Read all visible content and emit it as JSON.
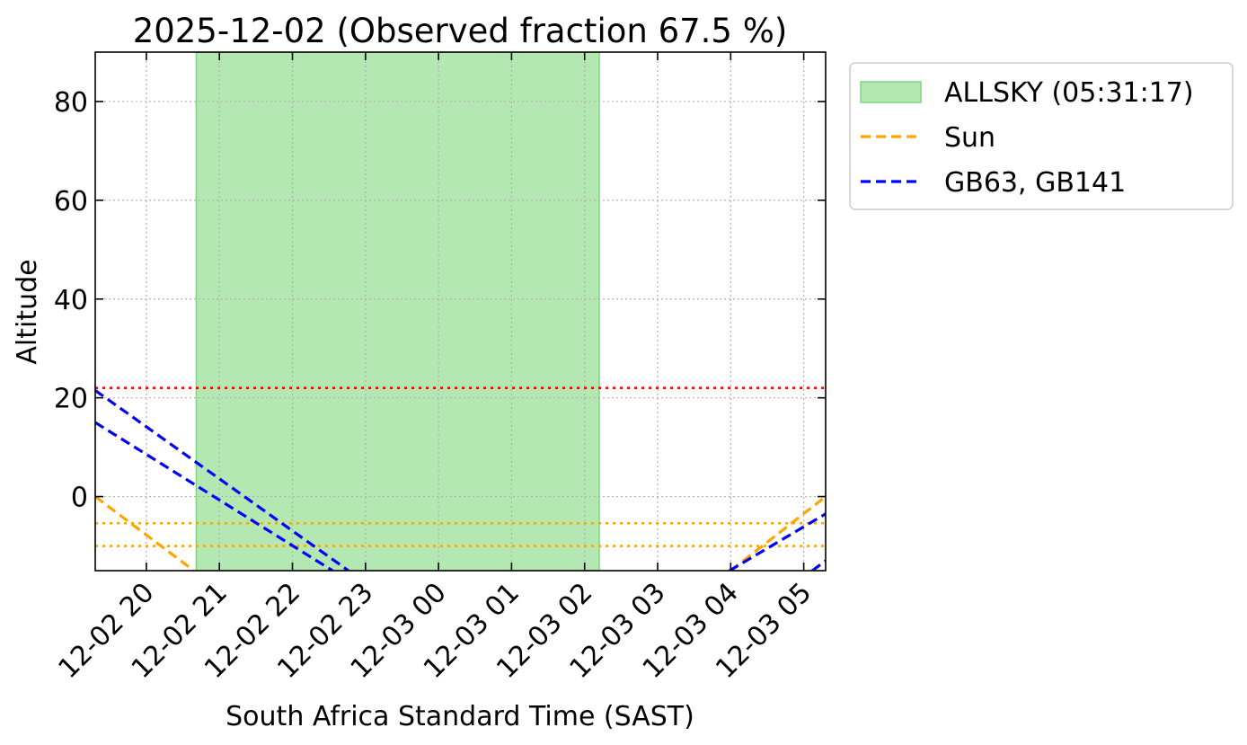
{
  "chart_data": {
    "type": "line",
    "title": "2025-12-02 (Observed fraction 67.5 %)",
    "xlabel": "South Africa Standard Time (SAST)",
    "ylabel": "Altitude",
    "x_axis_type": "datetime",
    "xlim": [
      "2025-12-02 19:18",
      "2025-12-03 05:18"
    ],
    "ylim": [
      -15,
      90
    ],
    "x_ticks": [
      {
        "t": "2025-12-02 20:00",
        "label": "12-02 20"
      },
      {
        "t": "2025-12-02 21:00",
        "label": "12-02 21"
      },
      {
        "t": "2025-12-02 22:00",
        "label": "12-02 22"
      },
      {
        "t": "2025-12-02 23:00",
        "label": "12-02 23"
      },
      {
        "t": "2025-12-03 00:00",
        "label": "12-03 00"
      },
      {
        "t": "2025-12-03 01:00",
        "label": "12-03 01"
      },
      {
        "t": "2025-12-03 02:00",
        "label": "12-03 02"
      },
      {
        "t": "2025-12-03 03:00",
        "label": "12-03 03"
      },
      {
        "t": "2025-12-03 04:00",
        "label": "12-03 04"
      },
      {
        "t": "2025-12-03 05:00",
        "label": "12-03 05"
      }
    ],
    "y_ticks": [
      {
        "v": 0,
        "label": "0"
      },
      {
        "v": 20,
        "label": "20"
      },
      {
        "v": 40,
        "label": "40"
      },
      {
        "v": 60,
        "label": "60"
      },
      {
        "v": 80,
        "label": "80"
      }
    ],
    "grid": true,
    "legend_position": "outside-top-right",
    "shaded_spans": [
      {
        "name": "ALLSKY (05:31:17)",
        "start": "2025-12-02 20:41",
        "end": "2025-12-03 02:12",
        "color": "#b3e8b3",
        "edge": "#7fd37f"
      }
    ],
    "horizontal_lines": [
      {
        "y": 22,
        "color": "#ff0000",
        "style": "dotted"
      },
      {
        "y": -5.4,
        "color": "#ffa500",
        "style": "dotted"
      },
      {
        "y": -10,
        "color": "#ffa500",
        "style": "dotted"
      }
    ],
    "series": [
      {
        "name": "Sun",
        "color": "#ffa500",
        "style": "dashed",
        "legend": true,
        "points": [
          [
            "2025-12-02 19:18",
            0
          ],
          [
            "2025-12-02 20:39",
            -15
          ]
        ]
      },
      {
        "name": "Sun",
        "color": "#ffa500",
        "style": "dashed",
        "legend": false,
        "points": [
          [
            "2025-12-03 04:00",
            -15
          ],
          [
            "2025-12-03 05:18",
            0
          ]
        ]
      },
      {
        "name": "GB63, GB141",
        "color": "#0000ff",
        "style": "dashed",
        "legend": true,
        "points": [
          [
            "2025-12-02 19:18",
            21.5
          ],
          [
            "2025-12-02 22:46",
            -15
          ]
        ]
      },
      {
        "name": "GB63, GB141",
        "color": "#0000ff",
        "style": "dashed",
        "legend": false,
        "points": [
          [
            "2025-12-02 19:18",
            15
          ],
          [
            "2025-12-02 22:33",
            -15
          ]
        ]
      },
      {
        "name": "GB63, GB141",
        "color": "#0000ff",
        "style": "dashed",
        "legend": false,
        "points": [
          [
            "2025-12-03 03:59",
            -15
          ],
          [
            "2025-12-03 05:18",
            -3.5
          ]
        ]
      },
      {
        "name": "GB63, GB141",
        "color": "#0000ff",
        "style": "dashed",
        "legend": false,
        "points": [
          [
            "2025-12-03 05:07",
            -15
          ],
          [
            "2025-12-03 05:18",
            -13
          ]
        ]
      }
    ]
  }
}
